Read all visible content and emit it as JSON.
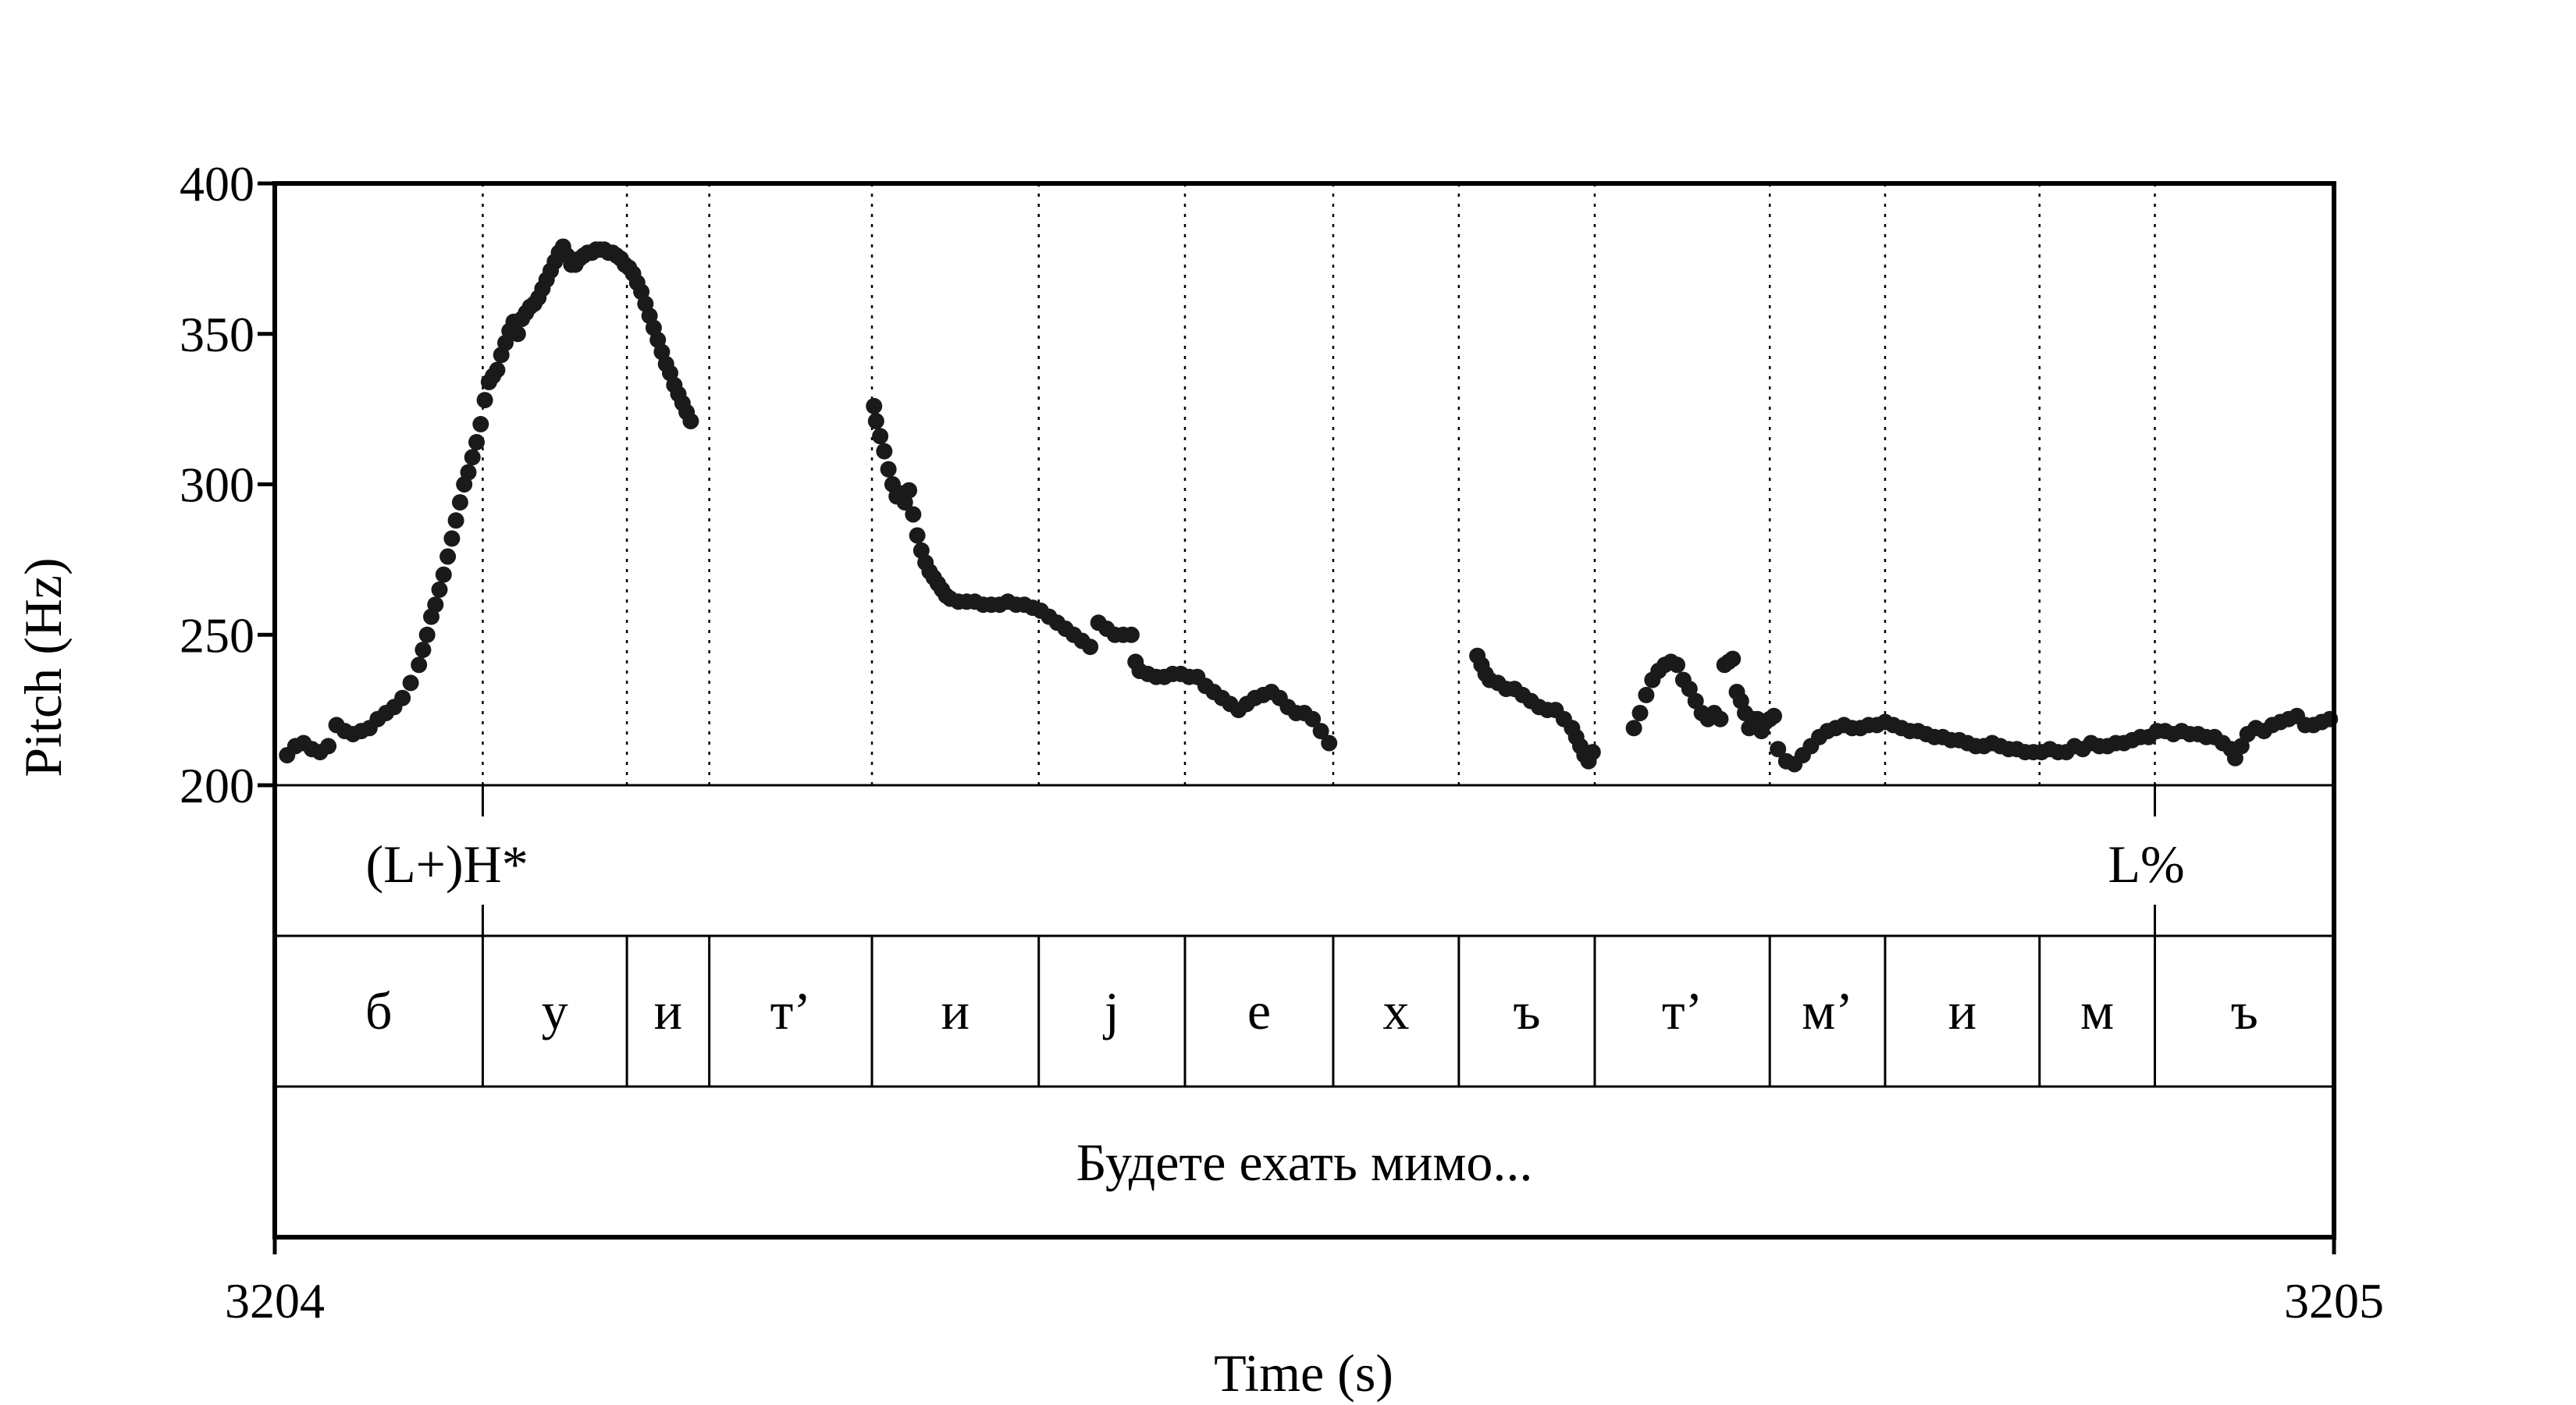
{
  "chart_data": {
    "type": "scatter",
    "title": "",
    "xlabel": "Time (s)",
    "ylabel": "Pitch (Hz)",
    "xlim": [
      3204,
      3205
    ],
    "ylim": [
      200,
      400
    ],
    "x_tick_labels": [
      "3204",
      "3205"
    ],
    "y_tick_labels": [
      "400",
      "350",
      "300",
      "250",
      "200"
    ],
    "y_ticks": [
      400,
      350,
      300,
      250,
      200
    ],
    "boundaries": [
      3204.101,
      3204.171,
      3204.211,
      3204.29,
      3204.371,
      3204.442,
      3204.514,
      3204.575,
      3204.641,
      3204.726,
      3204.782,
      3204.857,
      3204.913
    ],
    "tones": [
      {
        "label": "(L+)H*",
        "time": 3204.101
      },
      {
        "label": "L%",
        "time": 3204.913
      }
    ],
    "segments": [
      {
        "label": "б",
        "start": 3204.0,
        "end": 3204.101
      },
      {
        "label": "у",
        "start": 3204.101,
        "end": 3204.171
      },
      {
        "label": "и",
        "start": 3204.171,
        "end": 3204.211
      },
      {
        "label": "т’",
        "start": 3204.211,
        "end": 3204.29
      },
      {
        "label": "и",
        "start": 3204.29,
        "end": 3204.371
      },
      {
        "label": "j",
        "start": 3204.371,
        "end": 3204.442
      },
      {
        "label": "е",
        "start": 3204.442,
        "end": 3204.514
      },
      {
        "label": "х",
        "start": 3204.514,
        "end": 3204.575
      },
      {
        "label": "ъ",
        "start": 3204.575,
        "end": 3204.641
      },
      {
        "label": "т’",
        "start": 3204.641,
        "end": 3204.726
      },
      {
        "label": "м’",
        "start": 3204.726,
        "end": 3204.782
      },
      {
        "label": "и",
        "start": 3204.782,
        "end": 3204.857
      },
      {
        "label": "м",
        "start": 3204.857,
        "end": 3204.913
      },
      {
        "label": "ъ",
        "start": 3204.913,
        "end": 3205.0
      }
    ],
    "utterance": "Будете ехать мимо...",
    "series": [
      {
        "points": [
          [
            3204.006,
            210
          ],
          [
            3204.01,
            213
          ],
          [
            3204.014,
            214
          ],
          [
            3204.018,
            212
          ],
          [
            3204.022,
            211
          ],
          [
            3204.026,
            213
          ],
          [
            3204.03,
            220
          ],
          [
            3204.034,
            218
          ],
          [
            3204.038,
            217
          ],
          [
            3204.042,
            218
          ],
          [
            3204.046,
            219
          ],
          [
            3204.05,
            222
          ],
          [
            3204.054,
            224
          ],
          [
            3204.058,
            226
          ],
          [
            3204.062,
            229
          ],
          [
            3204.066,
            234
          ],
          [
            3204.07,
            240
          ],
          [
            3204.072,
            245
          ],
          [
            3204.074,
            250
          ],
          [
            3204.076,
            256
          ],
          [
            3204.078,
            260
          ],
          [
            3204.08,
            265
          ],
          [
            3204.082,
            270
          ],
          [
            3204.084,
            276
          ],
          [
            3204.086,
            282
          ],
          [
            3204.088,
            288
          ],
          [
            3204.09,
            294
          ],
          [
            3204.092,
            300
          ],
          [
            3204.094,
            304
          ],
          [
            3204.096,
            309
          ],
          [
            3204.098,
            314
          ],
          [
            3204.1,
            320
          ],
          [
            3204.102,
            328
          ],
          [
            3204.104,
            334
          ],
          [
            3204.106,
            336
          ],
          [
            3204.108,
            338
          ],
          [
            3204.11,
            343
          ],
          [
            3204.112,
            347
          ],
          [
            3204.114,
            351
          ],
          [
            3204.116,
            354
          ],
          [
            3204.118,
            350
          ],
          [
            3204.12,
            355
          ],
          [
            3204.122,
            357
          ],
          [
            3204.124,
            359
          ],
          [
            3204.126,
            360
          ],
          [
            3204.128,
            362
          ],
          [
            3204.13,
            365
          ],
          [
            3204.132,
            368
          ],
          [
            3204.134,
            371
          ],
          [
            3204.136,
            374
          ],
          [
            3204.138,
            377
          ],
          [
            3204.14,
            379
          ],
          [
            3204.142,
            376
          ],
          [
            3204.144,
            373
          ],
          [
            3204.146,
            373
          ],
          [
            3204.148,
            375
          ],
          [
            3204.15,
            376
          ],
          [
            3204.152,
            377
          ],
          [
            3204.154,
            377
          ],
          [
            3204.156,
            378
          ],
          [
            3204.158,
            378
          ],
          [
            3204.16,
            378
          ],
          [
            3204.162,
            377
          ],
          [
            3204.164,
            377
          ],
          [
            3204.166,
            376
          ],
          [
            3204.168,
            375
          ],
          [
            3204.17,
            373
          ],
          [
            3204.172,
            372
          ],
          [
            3204.174,
            370
          ],
          [
            3204.176,
            367
          ],
          [
            3204.178,
            364
          ],
          [
            3204.18,
            360
          ],
          [
            3204.182,
            356
          ],
          [
            3204.184,
            352
          ],
          [
            3204.186,
            348
          ],
          [
            3204.188,
            344
          ],
          [
            3204.19,
            340
          ],
          [
            3204.192,
            337
          ],
          [
            3204.194,
            333
          ],
          [
            3204.196,
            330
          ],
          [
            3204.198,
            327
          ],
          [
            3204.2,
            324
          ],
          [
            3204.202,
            321
          ],
          [
            3204.291,
            326
          ],
          [
            3204.292,
            321
          ],
          [
            3204.294,
            316
          ],
          [
            3204.296,
            311
          ],
          [
            3204.298,
            305
          ],
          [
            3204.3,
            300
          ],
          [
            3204.302,
            296
          ],
          [
            3204.304,
            297
          ],
          [
            3204.306,
            294
          ],
          [
            3204.308,
            298
          ],
          [
            3204.31,
            290
          ],
          [
            3204.312,
            283
          ],
          [
            3204.314,
            278
          ],
          [
            3204.316,
            274
          ],
          [
            3204.318,
            271
          ],
          [
            3204.32,
            269
          ],
          [
            3204.322,
            267
          ],
          [
            3204.324,
            265
          ],
          [
            3204.326,
            263
          ],
          [
            3204.328,
            262
          ],
          [
            3204.332,
            261
          ],
          [
            3204.336,
            261
          ],
          [
            3204.34,
            261
          ],
          [
            3204.344,
            260
          ],
          [
            3204.348,
            260
          ],
          [
            3204.352,
            260
          ],
          [
            3204.356,
            261
          ],
          [
            3204.36,
            260
          ],
          [
            3204.364,
            260
          ],
          [
            3204.368,
            259
          ],
          [
            3204.372,
            258
          ],
          [
            3204.376,
            256
          ],
          [
            3204.38,
            254
          ],
          [
            3204.384,
            252
          ],
          [
            3204.388,
            250
          ],
          [
            3204.392,
            248
          ],
          [
            3204.396,
            246
          ],
          [
            3204.4,
            254
          ],
          [
            3204.404,
            252
          ],
          [
            3204.408,
            250
          ],
          [
            3204.412,
            250
          ],
          [
            3204.416,
            250
          ],
          [
            3204.418,
            241
          ],
          [
            3204.42,
            238
          ],
          [
            3204.424,
            237
          ],
          [
            3204.428,
            236
          ],
          [
            3204.432,
            236
          ],
          [
            3204.436,
            237
          ],
          [
            3204.44,
            237
          ],
          [
            3204.444,
            236
          ],
          [
            3204.448,
            236
          ],
          [
            3204.452,
            233
          ],
          [
            3204.456,
            231
          ],
          [
            3204.46,
            229
          ],
          [
            3204.464,
            227
          ],
          [
            3204.468,
            225
          ],
          [
            3204.472,
            227
          ],
          [
            3204.476,
            229
          ],
          [
            3204.48,
            230
          ],
          [
            3204.484,
            231
          ],
          [
            3204.488,
            229
          ],
          [
            3204.492,
            226
          ],
          [
            3204.496,
            224
          ],
          [
            3204.5,
            224
          ],
          [
            3204.504,
            222
          ],
          [
            3204.508,
            218
          ],
          [
            3204.512,
            214
          ],
          [
            3204.584,
            243
          ],
          [
            3204.586,
            240
          ],
          [
            3204.588,
            237
          ],
          [
            3204.59,
            235
          ],
          [
            3204.594,
            234
          ],
          [
            3204.598,
            232
          ],
          [
            3204.602,
            232
          ],
          [
            3204.606,
            230
          ],
          [
            3204.61,
            228
          ],
          [
            3204.614,
            226
          ],
          [
            3204.618,
            225
          ],
          [
            3204.622,
            225
          ],
          [
            3204.626,
            222
          ],
          [
            3204.63,
            219
          ],
          [
            3204.632,
            216
          ],
          [
            3204.634,
            213
          ],
          [
            3204.636,
            210
          ],
          [
            3204.638,
            208
          ],
          [
            3204.64,
            211
          ],
          [
            3204.66,
            219
          ],
          [
            3204.663,
            224
          ],
          [
            3204.666,
            230
          ],
          [
            3204.669,
            235
          ],
          [
            3204.672,
            238
          ],
          [
            3204.675,
            240
          ],
          [
            3204.678,
            241
          ],
          [
            3204.681,
            240
          ],
          [
            3204.684,
            235
          ],
          [
            3204.687,
            232
          ],
          [
            3204.69,
            228
          ],
          [
            3204.693,
            224
          ],
          [
            3204.696,
            222
          ],
          [
            3204.699,
            224
          ],
          [
            3204.702,
            222
          ],
          [
            3204.704,
            240
          ],
          [
            3204.706,
            241
          ],
          [
            3204.708,
            242
          ],
          [
            3204.71,
            231
          ],
          [
            3204.712,
            228
          ],
          [
            3204.714,
            224
          ],
          [
            3204.716,
            219
          ],
          [
            3204.718,
            222
          ],
          [
            3204.72,
            222
          ],
          [
            3204.722,
            218
          ],
          [
            3204.724,
            221
          ],
          [
            3204.726,
            222
          ],
          [
            3204.728,
            223
          ],
          [
            3204.73,
            212
          ],
          [
            3204.734,
            208
          ],
          [
            3204.738,
            207
          ],
          [
            3204.742,
            210
          ],
          [
            3204.746,
            213
          ],
          [
            3204.75,
            216
          ],
          [
            3204.754,
            218
          ],
          [
            3204.758,
            219
          ],
          [
            3204.762,
            220
          ],
          [
            3204.766,
            219
          ],
          [
            3204.77,
            219
          ],
          [
            3204.774,
            220
          ],
          [
            3204.778,
            220
          ],
          [
            3204.782,
            221
          ],
          [
            3204.786,
            220
          ],
          [
            3204.79,
            219
          ],
          [
            3204.794,
            218
          ],
          [
            3204.798,
            218
          ],
          [
            3204.802,
            217
          ],
          [
            3204.806,
            216
          ],
          [
            3204.81,
            216
          ],
          [
            3204.814,
            215
          ],
          [
            3204.818,
            215
          ],
          [
            3204.822,
            214
          ],
          [
            3204.826,
            213
          ],
          [
            3204.83,
            213
          ],
          [
            3204.834,
            214
          ],
          [
            3204.838,
            213
          ],
          [
            3204.842,
            212
          ],
          [
            3204.846,
            212
          ],
          [
            3204.85,
            211
          ],
          [
            3204.854,
            211
          ],
          [
            3204.858,
            211
          ],
          [
            3204.862,
            212
          ],
          [
            3204.866,
            211
          ],
          [
            3204.87,
            211
          ],
          [
            3204.874,
            213
          ],
          [
            3204.878,
            212
          ],
          [
            3204.882,
            214
          ],
          [
            3204.886,
            213
          ],
          [
            3204.89,
            213
          ],
          [
            3204.894,
            214
          ],
          [
            3204.898,
            214
          ],
          [
            3204.902,
            215
          ],
          [
            3204.906,
            216
          ],
          [
            3204.91,
            216
          ],
          [
            3204.914,
            218
          ],
          [
            3204.918,
            218
          ],
          [
            3204.922,
            217
          ],
          [
            3204.926,
            218
          ],
          [
            3204.93,
            217
          ],
          [
            3204.934,
            217
          ],
          [
            3204.938,
            216
          ],
          [
            3204.942,
            216
          ],
          [
            3204.946,
            214
          ],
          [
            3204.95,
            212
          ],
          [
            3204.952,
            209
          ],
          [
            3204.955,
            213
          ],
          [
            3204.958,
            217
          ],
          [
            3204.962,
            219
          ],
          [
            3204.966,
            218
          ],
          [
            3204.97,
            220
          ],
          [
            3204.974,
            221
          ],
          [
            3204.978,
            222
          ],
          [
            3204.982,
            223
          ],
          [
            3204.986,
            220
          ],
          [
            3204.99,
            220
          ],
          [
            3204.994,
            221
          ],
          [
            3204.998,
            222
          ]
        ]
      }
    ]
  }
}
